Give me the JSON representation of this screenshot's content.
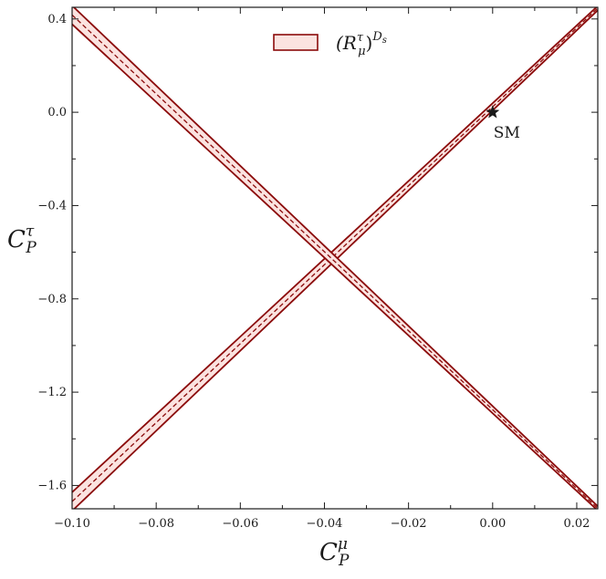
{
  "chart_data": {
    "type": "line",
    "title": "",
    "xlabel": {
      "base": "C",
      "sub": "P",
      "sup": "μ"
    },
    "ylabel": {
      "base": "C",
      "sub": "P",
      "sup": "τ"
    },
    "xlim": [
      -0.1,
      0.025
    ],
    "ylim": [
      -1.7,
      0.45
    ],
    "xticks": [
      -0.1,
      -0.08,
      -0.06,
      -0.04,
      -0.02,
      0.0,
      0.02
    ],
    "xtick_labels": [
      "−0.10",
      "−0.08",
      "−0.06",
      "−0.04",
      "−0.02",
      "0.00",
      "0.02"
    ],
    "yticks": [
      0.4,
      0.0,
      -0.4,
      -0.8,
      -1.2,
      -1.6
    ],
    "ytick_labels": [
      "0.4",
      "0.0",
      "−0.4",
      "−0.8",
      "−1.2",
      "−1.6"
    ],
    "grid": false,
    "legend_position": "top-center",
    "colors": {
      "band_edge": "#8b0a0a",
      "band_fill": "#fbe3e0",
      "central": "#8b0a0a"
    },
    "legend": [
      {
        "label": {
          "base": "(R",
          "sub": "μ",
          "sup": "τ",
          "close": ")",
          "outer_sup": "D",
          "outer_sup_sub": "s"
        }
      }
    ],
    "series": [
      {
        "band": "rising",
        "center_x": [
          -0.1,
          0.025
        ],
        "center_y": [
          -1.669,
          0.4466
        ],
        "upper_y": [
          -1.629,
          0.4558
        ],
        "lower_y": [
          -1.709,
          0.4374
        ]
      },
      {
        "band": "falling",
        "center_x": [
          -0.1,
          0.025
        ],
        "center_y": [
          0.4173,
          -1.6983
        ],
        "upper_y": [
          0.4573,
          -1.6891
        ],
        "lower_y": [
          0.3773,
          -1.7075
        ]
      }
    ],
    "annotations": [
      {
        "label": "SM",
        "x": 0.0,
        "y": 0.0,
        "marker": "star"
      }
    ]
  }
}
